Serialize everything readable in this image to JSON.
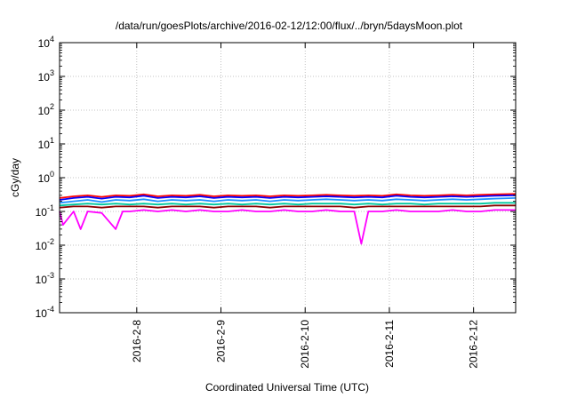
{
  "chart_data": {
    "type": "line",
    "title": "/data/run/goesPlots/archive/2016-02-12/12:00/flux/../bryn/5daysMoon.plot",
    "xlabel": "Coordinated Universal Time (UTC)",
    "ylabel": "cGy/day",
    "y_scale": "log",
    "ylim": [
      0.0001,
      10000
    ],
    "xlim": [
      "2016-02-07T02:00",
      "2016-02-12T12:00"
    ],
    "yticks": [
      {
        "value": 10000,
        "base": "10",
        "exp": "4"
      },
      {
        "value": 1000,
        "base": "10",
        "exp": "3"
      },
      {
        "value": 100,
        "base": "10",
        "exp": "2"
      },
      {
        "value": 10,
        "base": "10",
        "exp": "1"
      },
      {
        "value": 1,
        "base": "10",
        "exp": "0"
      },
      {
        "value": 0.1,
        "base": "10",
        "exp": "-1"
      },
      {
        "value": 0.01,
        "base": "10",
        "exp": "-2"
      },
      {
        "value": 0.001,
        "base": "10",
        "exp": "-3"
      },
      {
        "value": 0.0001,
        "base": "10",
        "exp": "-4"
      }
    ],
    "xticks": [
      {
        "date": "2016-02-08",
        "label": "2016-2-8"
      },
      {
        "date": "2016-02-09",
        "label": "2016-2-9"
      },
      {
        "date": "2016-02-10",
        "label": "2016-2-10"
      },
      {
        "date": "2016-02-11",
        "label": "2016-2-11"
      },
      {
        "date": "2016-02-12",
        "label": "2016-2-12"
      }
    ],
    "grid": true,
    "series": [
      {
        "color": "#ff0000",
        "values": [
          [
            "2016-02-07T02:00",
            0.25
          ],
          [
            "2016-02-07T06:00",
            0.28
          ],
          [
            "2016-02-07T10:00",
            0.3
          ],
          [
            "2016-02-07T14:00",
            0.27
          ],
          [
            "2016-02-07T18:00",
            0.3
          ],
          [
            "2016-02-07T22:00",
            0.29
          ],
          [
            "2016-02-08T02:00",
            0.32
          ],
          [
            "2016-02-08T06:00",
            0.28
          ],
          [
            "2016-02-08T10:00",
            0.3
          ],
          [
            "2016-02-08T14:00",
            0.29
          ],
          [
            "2016-02-08T18:00",
            0.31
          ],
          [
            "2016-02-08T22:00",
            0.28
          ],
          [
            "2016-02-09T02:00",
            0.3
          ],
          [
            "2016-02-09T06:00",
            0.29
          ],
          [
            "2016-02-09T10:00",
            0.3
          ],
          [
            "2016-02-09T14:00",
            0.28
          ],
          [
            "2016-02-09T18:00",
            0.3
          ],
          [
            "2016-02-09T22:00",
            0.29
          ],
          [
            "2016-02-10T02:00",
            0.3
          ],
          [
            "2016-02-10T06:00",
            0.31
          ],
          [
            "2016-02-10T10:00",
            0.3
          ],
          [
            "2016-02-10T14:00",
            0.29
          ],
          [
            "2016-02-10T18:00",
            0.3
          ],
          [
            "2016-02-10T22:00",
            0.29
          ],
          [
            "2016-02-11T02:00",
            0.32
          ],
          [
            "2016-02-11T06:00",
            0.3
          ],
          [
            "2016-02-11T10:00",
            0.29
          ],
          [
            "2016-02-11T14:00",
            0.3
          ],
          [
            "2016-02-11T18:00",
            0.31
          ],
          [
            "2016-02-11T22:00",
            0.3
          ],
          [
            "2016-02-12T02:00",
            0.31
          ],
          [
            "2016-02-12T06:00",
            0.32
          ],
          [
            "2016-02-12T12:00",
            0.33
          ]
        ]
      },
      {
        "color": "#0000ff",
        "values": [
          [
            "2016-02-07T02:00",
            0.22
          ],
          [
            "2016-02-07T06:00",
            0.25
          ],
          [
            "2016-02-07T10:00",
            0.27
          ],
          [
            "2016-02-07T14:00",
            0.24
          ],
          [
            "2016-02-07T18:00",
            0.27
          ],
          [
            "2016-02-07T22:00",
            0.26
          ],
          [
            "2016-02-08T02:00",
            0.29
          ],
          [
            "2016-02-08T06:00",
            0.25
          ],
          [
            "2016-02-08T10:00",
            0.27
          ],
          [
            "2016-02-08T14:00",
            0.26
          ],
          [
            "2016-02-08T18:00",
            0.28
          ],
          [
            "2016-02-08T22:00",
            0.25
          ],
          [
            "2016-02-09T02:00",
            0.27
          ],
          [
            "2016-02-09T06:00",
            0.26
          ],
          [
            "2016-02-09T10:00",
            0.27
          ],
          [
            "2016-02-09T14:00",
            0.25
          ],
          [
            "2016-02-09T18:00",
            0.27
          ],
          [
            "2016-02-09T22:00",
            0.26
          ],
          [
            "2016-02-10T02:00",
            0.27
          ],
          [
            "2016-02-10T06:00",
            0.28
          ],
          [
            "2016-02-10T10:00",
            0.27
          ],
          [
            "2016-02-10T14:00",
            0.26
          ],
          [
            "2016-02-10T18:00",
            0.27
          ],
          [
            "2016-02-10T22:00",
            0.26
          ],
          [
            "2016-02-11T02:00",
            0.29
          ],
          [
            "2016-02-11T06:00",
            0.27
          ],
          [
            "2016-02-11T10:00",
            0.26
          ],
          [
            "2016-02-11T14:00",
            0.27
          ],
          [
            "2016-02-11T18:00",
            0.28
          ],
          [
            "2016-02-11T22:00",
            0.27
          ],
          [
            "2016-02-12T02:00",
            0.28
          ],
          [
            "2016-02-12T06:00",
            0.29
          ],
          [
            "2016-02-12T12:00",
            0.3
          ]
        ]
      },
      {
        "color": "#1e90ff",
        "values": [
          [
            "2016-02-07T02:00",
            0.18
          ],
          [
            "2016-02-07T06:00",
            0.2
          ],
          [
            "2016-02-07T10:00",
            0.22
          ],
          [
            "2016-02-07T14:00",
            0.19
          ],
          [
            "2016-02-07T18:00",
            0.22
          ],
          [
            "2016-02-07T22:00",
            0.21
          ],
          [
            "2016-02-08T02:00",
            0.23
          ],
          [
            "2016-02-08T06:00",
            0.2
          ],
          [
            "2016-02-08T10:00",
            0.22
          ],
          [
            "2016-02-08T14:00",
            0.21
          ],
          [
            "2016-02-08T18:00",
            0.22
          ],
          [
            "2016-02-08T22:00",
            0.2
          ],
          [
            "2016-02-09T02:00",
            0.22
          ],
          [
            "2016-02-09T06:00",
            0.21
          ],
          [
            "2016-02-09T10:00",
            0.22
          ],
          [
            "2016-02-09T14:00",
            0.2
          ],
          [
            "2016-02-09T18:00",
            0.22
          ],
          [
            "2016-02-09T22:00",
            0.21
          ],
          [
            "2016-02-10T02:00",
            0.22
          ],
          [
            "2016-02-10T06:00",
            0.23
          ],
          [
            "2016-02-10T10:00",
            0.22
          ],
          [
            "2016-02-10T14:00",
            0.21
          ],
          [
            "2016-02-10T18:00",
            0.22
          ],
          [
            "2016-02-10T22:00",
            0.21
          ],
          [
            "2016-02-11T02:00",
            0.23
          ],
          [
            "2016-02-11T06:00",
            0.22
          ],
          [
            "2016-02-11T10:00",
            0.21
          ],
          [
            "2016-02-11T14:00",
            0.22
          ],
          [
            "2016-02-11T18:00",
            0.23
          ],
          [
            "2016-02-11T22:00",
            0.22
          ],
          [
            "2016-02-12T02:00",
            0.23
          ],
          [
            "2016-02-12T06:00",
            0.24
          ],
          [
            "2016-02-12T12:00",
            0.25
          ]
        ]
      },
      {
        "color": "#00c8a0",
        "values": [
          [
            "2016-02-07T02:00",
            0.15
          ],
          [
            "2016-02-07T06:00",
            0.16
          ],
          [
            "2016-02-07T10:00",
            0.17
          ],
          [
            "2016-02-07T14:00",
            0.16
          ],
          [
            "2016-02-07T18:00",
            0.17
          ],
          [
            "2016-02-07T22:00",
            0.16
          ],
          [
            "2016-02-08T02:00",
            0.17
          ],
          [
            "2016-02-08T06:00",
            0.16
          ],
          [
            "2016-02-08T10:00",
            0.17
          ],
          [
            "2016-02-08T14:00",
            0.16
          ],
          [
            "2016-02-08T18:00",
            0.17
          ],
          [
            "2016-02-08T22:00",
            0.16
          ],
          [
            "2016-02-09T02:00",
            0.17
          ],
          [
            "2016-02-09T06:00",
            0.16
          ],
          [
            "2016-02-09T10:00",
            0.17
          ],
          [
            "2016-02-09T14:00",
            0.16
          ],
          [
            "2016-02-09T18:00",
            0.17
          ],
          [
            "2016-02-09T22:00",
            0.16
          ],
          [
            "2016-02-10T02:00",
            0.17
          ],
          [
            "2016-02-10T06:00",
            0.17
          ],
          [
            "2016-02-10T10:00",
            0.17
          ],
          [
            "2016-02-10T14:00",
            0.16
          ],
          [
            "2016-02-10T18:00",
            0.17
          ],
          [
            "2016-02-10T22:00",
            0.16
          ],
          [
            "2016-02-11T02:00",
            0.17
          ],
          [
            "2016-02-11T06:00",
            0.17
          ],
          [
            "2016-02-11T10:00",
            0.16
          ],
          [
            "2016-02-11T14:00",
            0.17
          ],
          [
            "2016-02-11T18:00",
            0.17
          ],
          [
            "2016-02-11T22:00",
            0.17
          ],
          [
            "2016-02-12T02:00",
            0.17
          ],
          [
            "2016-02-12T06:00",
            0.18
          ],
          [
            "2016-02-12T12:00",
            0.18
          ]
        ]
      },
      {
        "color": "#8b0000",
        "values": [
          [
            "2016-02-07T02:00",
            0.13
          ],
          [
            "2016-02-07T06:00",
            0.14
          ],
          [
            "2016-02-07T10:00",
            0.14
          ],
          [
            "2016-02-07T14:00",
            0.13
          ],
          [
            "2016-02-07T18:00",
            0.14
          ],
          [
            "2016-02-07T22:00",
            0.14
          ],
          [
            "2016-02-08T02:00",
            0.14
          ],
          [
            "2016-02-08T06:00",
            0.13
          ],
          [
            "2016-02-08T10:00",
            0.14
          ],
          [
            "2016-02-08T14:00",
            0.14
          ],
          [
            "2016-02-08T18:00",
            0.14
          ],
          [
            "2016-02-08T22:00",
            0.13
          ],
          [
            "2016-02-09T02:00",
            0.14
          ],
          [
            "2016-02-09T06:00",
            0.14
          ],
          [
            "2016-02-09T10:00",
            0.14
          ],
          [
            "2016-02-09T14:00",
            0.13
          ],
          [
            "2016-02-09T18:00",
            0.14
          ],
          [
            "2016-02-09T22:00",
            0.14
          ],
          [
            "2016-02-10T02:00",
            0.14
          ],
          [
            "2016-02-10T06:00",
            0.14
          ],
          [
            "2016-02-10T10:00",
            0.14
          ],
          [
            "2016-02-10T14:00",
            0.13
          ],
          [
            "2016-02-10T18:00",
            0.14
          ],
          [
            "2016-02-10T22:00",
            0.14
          ],
          [
            "2016-02-11T02:00",
            0.14
          ],
          [
            "2016-02-11T06:00",
            0.14
          ],
          [
            "2016-02-11T10:00",
            0.14
          ],
          [
            "2016-02-11T14:00",
            0.14
          ],
          [
            "2016-02-11T18:00",
            0.14
          ],
          [
            "2016-02-11T22:00",
            0.14
          ],
          [
            "2016-02-12T02:00",
            0.14
          ],
          [
            "2016-02-12T06:00",
            0.15
          ],
          [
            "2016-02-12T12:00",
            0.15
          ]
        ]
      },
      {
        "color": "#ff00ff",
        "values": [
          [
            "2016-02-07T02:00",
            0.1
          ],
          [
            "2016-02-07T03:00",
            0.04
          ],
          [
            "2016-02-07T06:00",
            0.1
          ],
          [
            "2016-02-07T08:00",
            0.03
          ],
          [
            "2016-02-07T10:00",
            0.1
          ],
          [
            "2016-02-07T14:00",
            0.09
          ],
          [
            "2016-02-07T18:00",
            0.03
          ],
          [
            "2016-02-07T20:00",
            0.1
          ],
          [
            "2016-02-07T22:00",
            0.1
          ],
          [
            "2016-02-08T02:00",
            0.11
          ],
          [
            "2016-02-08T06:00",
            0.1
          ],
          [
            "2016-02-08T10:00",
            0.11
          ],
          [
            "2016-02-08T14:00",
            0.1
          ],
          [
            "2016-02-08T18:00",
            0.11
          ],
          [
            "2016-02-08T22:00",
            0.1
          ],
          [
            "2016-02-09T02:00",
            0.1
          ],
          [
            "2016-02-09T06:00",
            0.11
          ],
          [
            "2016-02-09T10:00",
            0.1
          ],
          [
            "2016-02-09T14:00",
            0.1
          ],
          [
            "2016-02-09T18:00",
            0.11
          ],
          [
            "2016-02-09T22:00",
            0.1
          ],
          [
            "2016-02-10T02:00",
            0.1
          ],
          [
            "2016-02-10T06:00",
            0.11
          ],
          [
            "2016-02-10T10:00",
            0.1
          ],
          [
            "2016-02-10T14:00",
            0.1
          ],
          [
            "2016-02-10T16:00",
            0.011
          ],
          [
            "2016-02-10T18:00",
            0.1
          ],
          [
            "2016-02-10T22:00",
            0.1
          ],
          [
            "2016-02-11T02:00",
            0.11
          ],
          [
            "2016-02-11T06:00",
            0.1
          ],
          [
            "2016-02-11T10:00",
            0.1
          ],
          [
            "2016-02-11T14:00",
            0.1
          ],
          [
            "2016-02-11T18:00",
            0.11
          ],
          [
            "2016-02-11T22:00",
            0.1
          ],
          [
            "2016-02-12T02:00",
            0.1
          ],
          [
            "2016-02-12T06:00",
            0.11
          ],
          [
            "2016-02-12T12:00",
            0.11
          ]
        ]
      }
    ]
  }
}
